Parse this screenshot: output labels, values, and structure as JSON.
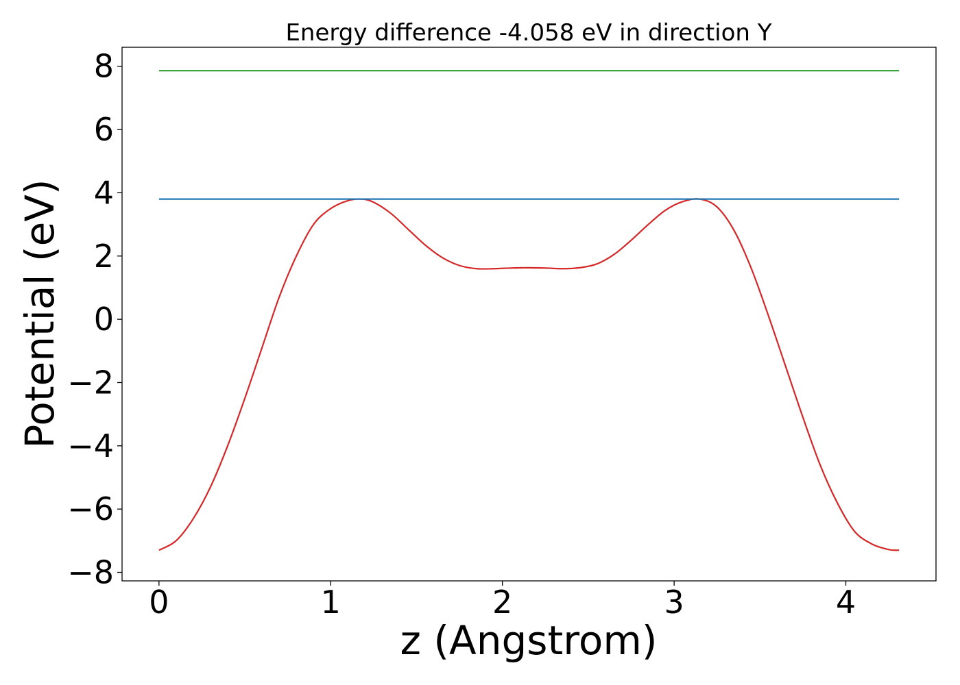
{
  "chart_data": {
    "type": "line",
    "title": "Energy difference -4.058 eV in direction Y",
    "xlabel": "z (Angstrom)",
    "ylabel": "Potential (eV)",
    "xlim": [
      -0.215,
      4.525
    ],
    "ylim": [
      -8.27,
      8.6
    ],
    "xticks": [
      0,
      1,
      2,
      3,
      4
    ],
    "xtick_labels": [
      "0",
      "1",
      "2",
      "3",
      "4"
    ],
    "yticks": [
      -8,
      -6,
      -4,
      -2,
      0,
      2,
      4,
      6,
      8
    ],
    "ytick_labels": [
      "−8",
      "−6",
      "−4",
      "−2",
      "0",
      "2",
      "4",
      "6",
      "8"
    ],
    "grid": false,
    "series": [
      {
        "color": "#d62728",
        "x": [
          0,
          0.1,
          0.2,
          0.3,
          0.4,
          0.5,
          0.6,
          0.7,
          0.8,
          0.9,
          1.0,
          1.1,
          1.18,
          1.25,
          1.35,
          1.45,
          1.55,
          1.65,
          1.75,
          1.85,
          1.95,
          2.05,
          2.15,
          2.25,
          2.35,
          2.45,
          2.55,
          2.65,
          2.75,
          2.85,
          2.95,
          3.05,
          3.15,
          3.25,
          3.35,
          3.45,
          3.55,
          3.65,
          3.75,
          3.85,
          3.95,
          4.05,
          4.15,
          4.25,
          4.31
        ],
        "y": [
          -7.3,
          -7.0,
          -6.3,
          -5.3,
          -4.0,
          -2.5,
          -0.9,
          0.7,
          2.0,
          3.0,
          3.5,
          3.75,
          3.8,
          3.7,
          3.35,
          2.85,
          2.35,
          1.95,
          1.7,
          1.6,
          1.6,
          1.62,
          1.63,
          1.62,
          1.6,
          1.63,
          1.75,
          2.05,
          2.5,
          3.0,
          3.45,
          3.72,
          3.8,
          3.55,
          2.8,
          1.6,
          0.1,
          -1.5,
          -3.1,
          -4.6,
          -5.8,
          -6.7,
          -7.1,
          -7.28,
          -7.3
        ]
      },
      {
        "color": "#1f77b4",
        "x": [
          0,
          4.31
        ],
        "y": [
          3.8,
          3.8
        ]
      },
      {
        "color": "#2ca02c",
        "x": [
          0,
          4.31
        ],
        "y": [
          7.86,
          7.86
        ]
      }
    ]
  }
}
